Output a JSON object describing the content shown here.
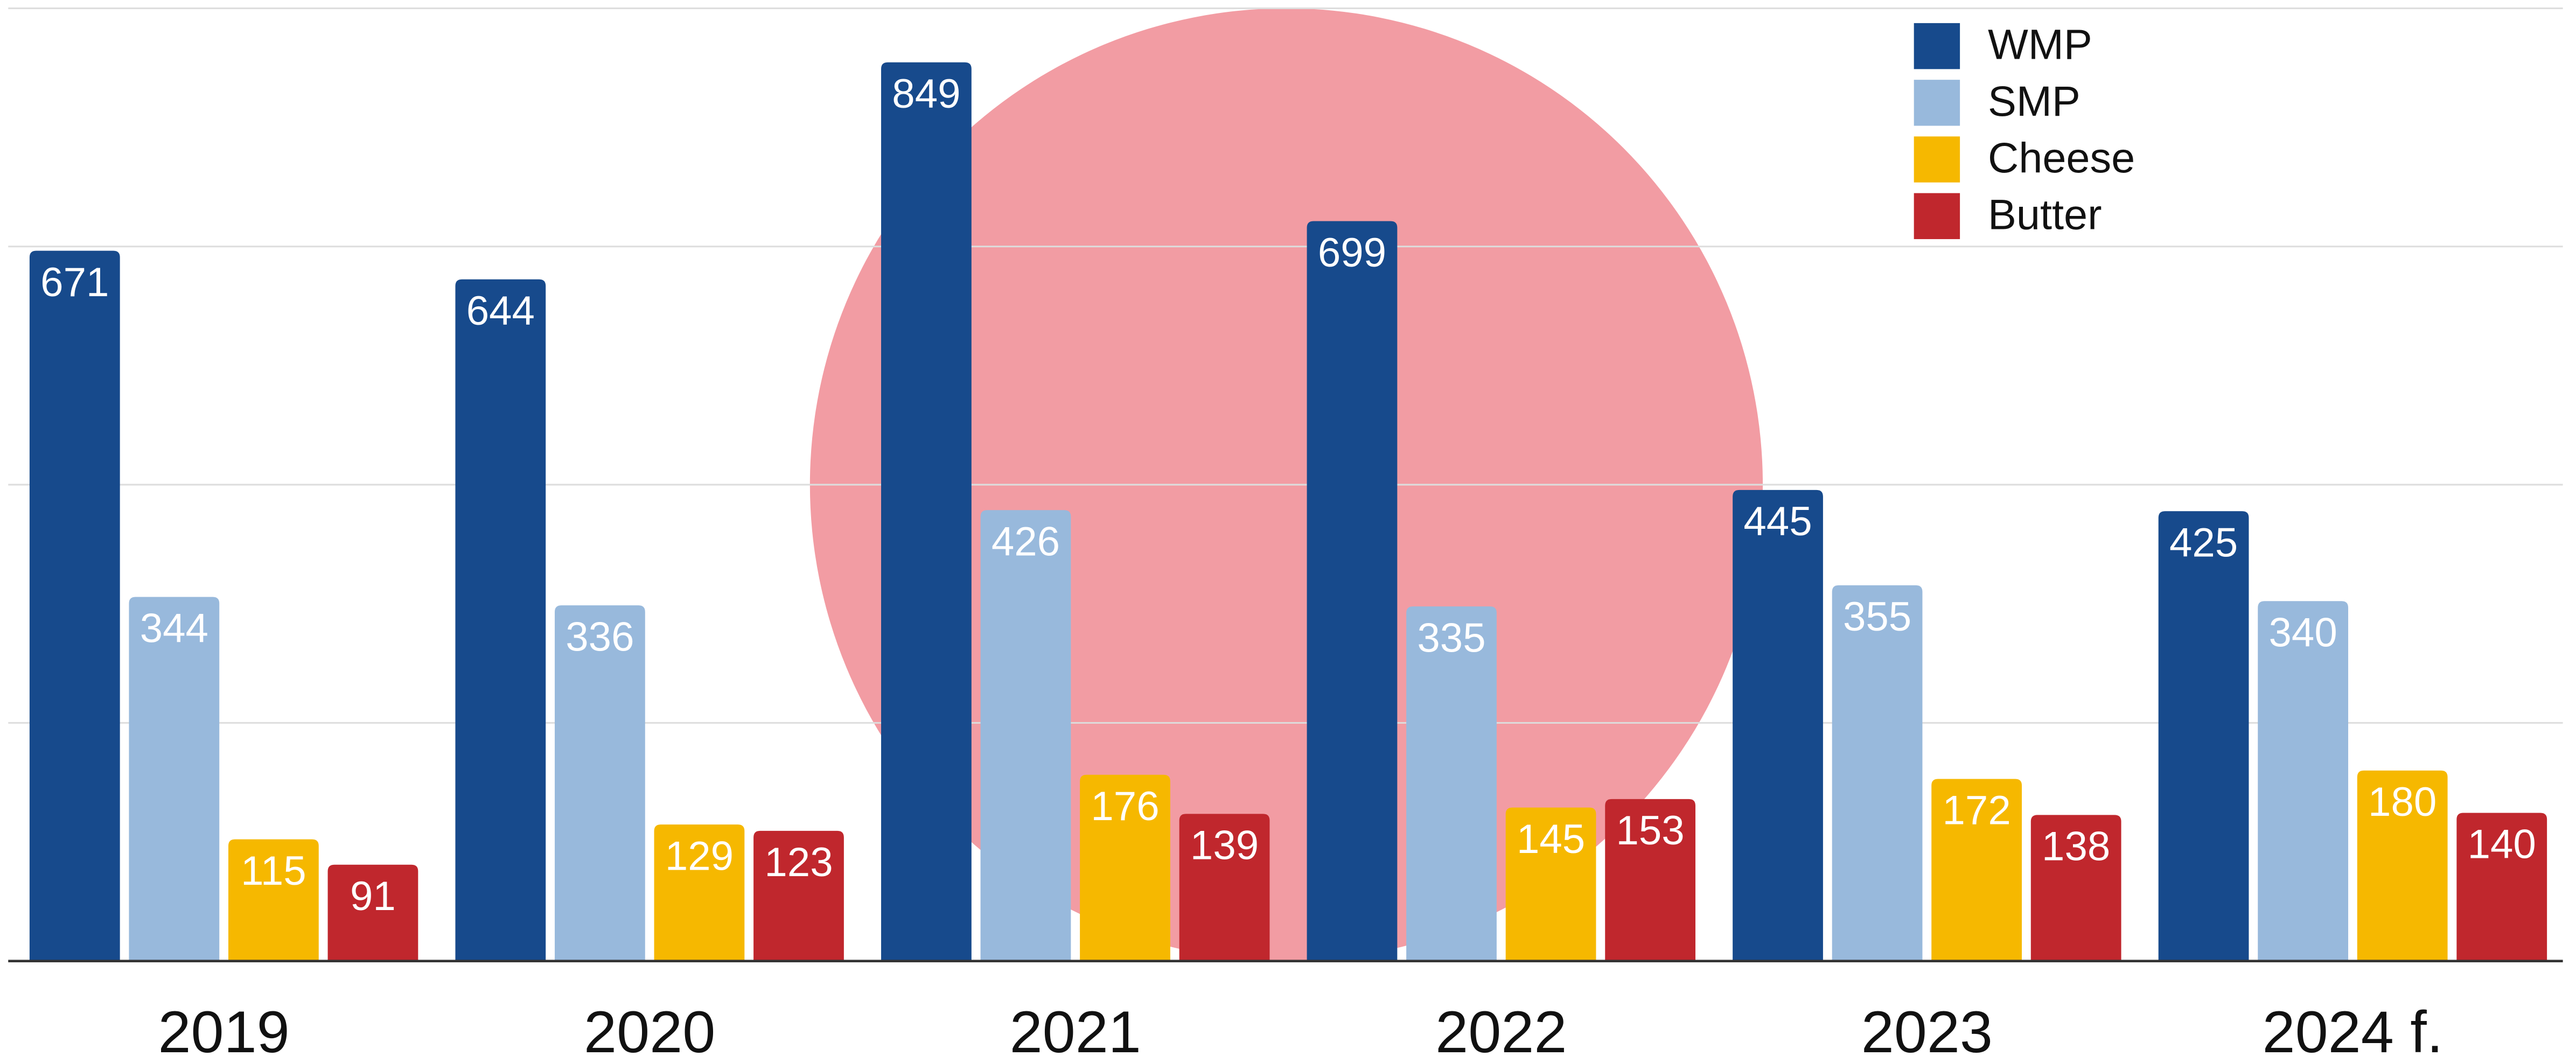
{
  "chart_data": {
    "type": "bar",
    "categories": [
      "2019",
      "2020",
      "2021",
      "2022",
      "2023",
      "2024 f."
    ],
    "series": [
      {
        "name": "WMP",
        "color": "#174a8c",
        "values": [
          671,
          644,
          849,
          699,
          445,
          425
        ]
      },
      {
        "name": "SMP",
        "color": "#98b9dc",
        "values": [
          344,
          336,
          426,
          335,
          355,
          340
        ]
      },
      {
        "name": "Cheese",
        "color": "#f6b800",
        "values": [
          115,
          129,
          176,
          145,
          172,
          180
        ]
      },
      {
        "name": "Butter",
        "color": "#c0272d",
        "values": [
          91,
          123,
          139,
          153,
          138,
          140
        ]
      }
    ],
    "ylim": [
      0,
      900
    ],
    "yticks": [
      0,
      225,
      450,
      675,
      900
    ],
    "grid": true,
    "legend": "upper right"
  }
}
